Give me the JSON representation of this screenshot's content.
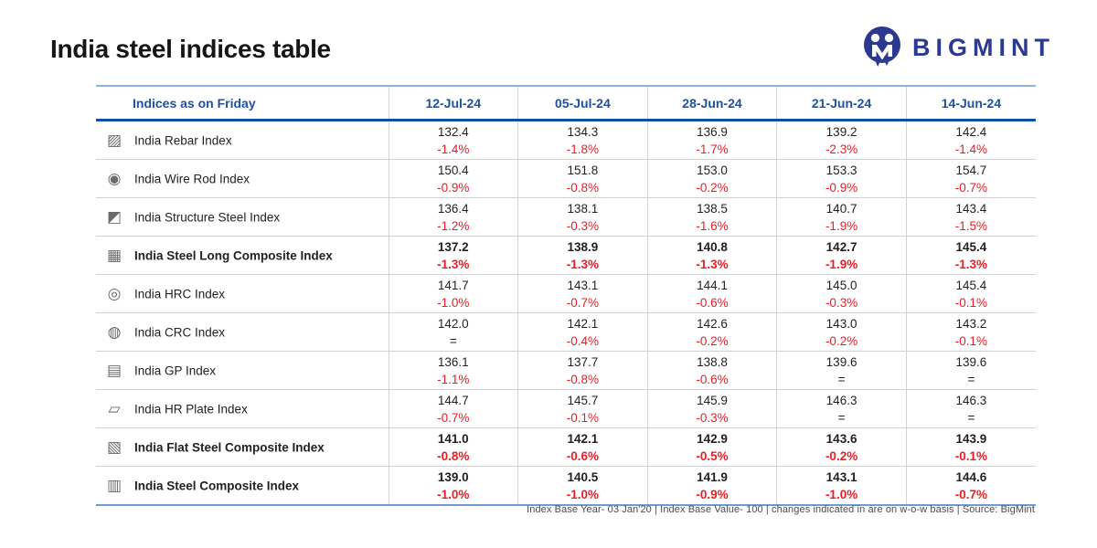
{
  "page": {
    "title": "India steel indices table",
    "footer_note": "Index Base Year- 03 Jan'20 | Index Base Value- 100 | changes indicated in are on w-o-w basis | Source: BigMint"
  },
  "brand": {
    "wordmark": "BIGMINT",
    "navy": "#2B3A8F"
  },
  "colors": {
    "header_text_blue": "#1B52A5",
    "header_rule_navy": "#0F4FA8",
    "table_top_rule_blue": "#8FB3DB",
    "table_bottom_rule_blue": "#6F9CCF",
    "negative_red": "#ED1C24",
    "value_text": "#231F20",
    "grid_line_gray": "#D2D2D2"
  },
  "chart_data": {
    "type": "table",
    "title": "India steel indices table",
    "columns": [
      "Indices as on Friday",
      "12-Jul-24",
      "05-Jul-24",
      "28-Jun-24",
      "21-Jun-24",
      "14-Jun-24"
    ],
    "rows": [
      {
        "name": "India Rebar Index",
        "icon": "rebar-icon",
        "glyph": "▨",
        "bold": false,
        "values": [
          "132.4",
          "134.3",
          "136.9",
          "139.2",
          "142.4"
        ],
        "changes": [
          "-1.4%",
          "-1.8%",
          "-1.7%",
          "-2.3%",
          "-1.4%"
        ]
      },
      {
        "name": "India Wire Rod Index",
        "icon": "wire-rod-coil-icon",
        "glyph": "◉",
        "bold": false,
        "values": [
          "150.4",
          "151.8",
          "153.0",
          "153.3",
          "154.7"
        ],
        "changes": [
          "-0.9%",
          "-0.8%",
          "-0.2%",
          "-0.9%",
          "-0.7%"
        ]
      },
      {
        "name": "India Structure Steel Index",
        "icon": "structure-steel-icon",
        "glyph": "◩",
        "bold": false,
        "values": [
          "136.4",
          "138.1",
          "138.5",
          "140.7",
          "143.4"
        ],
        "changes": [
          "-1.2%",
          "-0.3%",
          "-1.6%",
          "-1.9%",
          "-1.5%"
        ]
      },
      {
        "name": "India Steel Long Composite Index",
        "icon": "long-composite-icon",
        "glyph": "▦",
        "bold": true,
        "values": [
          "137.2",
          "138.9",
          "140.8",
          "142.7",
          "145.4"
        ],
        "changes": [
          "-1.3%",
          "-1.3%",
          "-1.3%",
          "-1.9%",
          "-1.3%"
        ]
      },
      {
        "name": "India HRC Index",
        "icon": "hrc-coil-icon",
        "glyph": "◎",
        "bold": false,
        "values": [
          "141.7",
          "143.1",
          "144.1",
          "145.0",
          "145.4"
        ],
        "changes": [
          "-1.0%",
          "-0.7%",
          "-0.6%",
          "-0.3%",
          "-0.1%"
        ]
      },
      {
        "name": "India CRC Index",
        "icon": "crc-coil-icon",
        "glyph": "◍",
        "bold": false,
        "values": [
          "142.0",
          "142.1",
          "142.6",
          "143.0",
          "143.2"
        ],
        "changes": [
          "=",
          "-0.4%",
          "-0.2%",
          "-0.2%",
          "-0.1%"
        ]
      },
      {
        "name": "India GP Index",
        "icon": "gp-sheets-icon",
        "glyph": "▤",
        "bold": false,
        "values": [
          "136.1",
          "137.7",
          "138.8",
          "139.6",
          "139.6"
        ],
        "changes": [
          "-1.1%",
          "-0.8%",
          "-0.6%",
          "=",
          "="
        ]
      },
      {
        "name": "India HR Plate Index",
        "icon": "hr-plate-icon",
        "glyph": "▱",
        "bold": false,
        "values": [
          "144.7",
          "145.7",
          "145.9",
          "146.3",
          "146.3"
        ],
        "changes": [
          "-0.7%",
          "-0.1%",
          "-0.3%",
          "=",
          "="
        ]
      },
      {
        "name": "India Flat Steel Composite Index",
        "icon": "flat-composite-icon",
        "glyph": "▧",
        "bold": true,
        "values": [
          "141.0",
          "142.1",
          "142.9",
          "143.6",
          "143.9"
        ],
        "changes": [
          "-0.8%",
          "-0.6%",
          "-0.5%",
          "-0.2%",
          "-0.1%"
        ]
      },
      {
        "name": "India Steel Composite Index",
        "icon": "steel-composite-icon",
        "glyph": "▥",
        "bold": true,
        "values": [
          "139.0",
          "140.5",
          "141.9",
          "143.1",
          "144.6"
        ],
        "changes": [
          "-1.0%",
          "-1.0%",
          "-0.9%",
          "-1.0%",
          "-0.7%"
        ]
      }
    ]
  }
}
